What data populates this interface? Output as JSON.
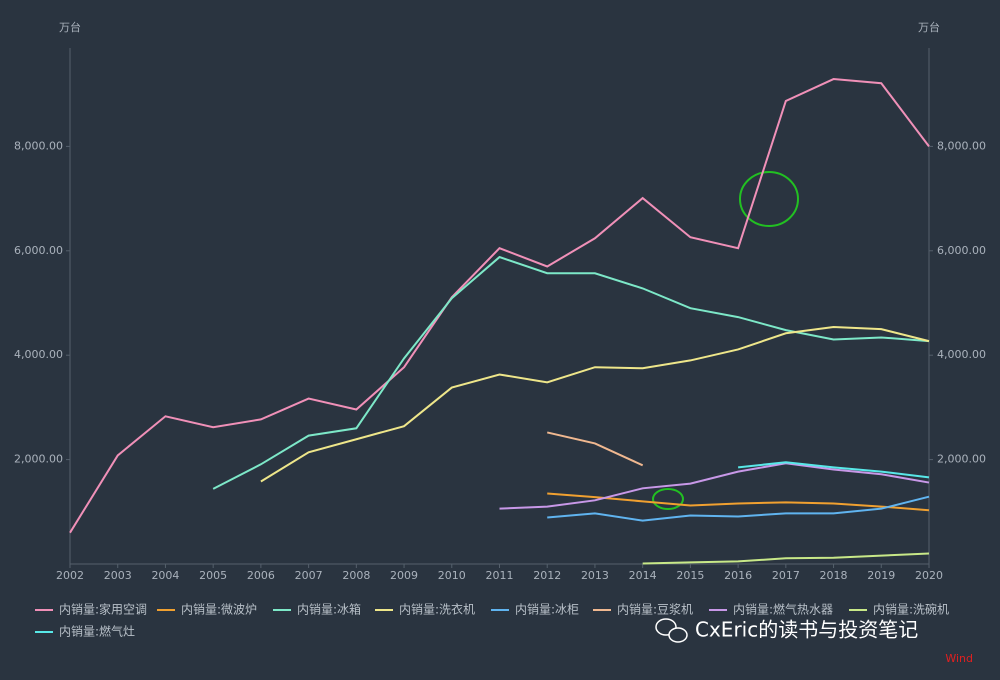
{
  "chart_data": {
    "type": "line",
    "y_unit": "万台",
    "y2_unit": "万台",
    "x": [
      2002,
      2003,
      2004,
      2005,
      2006,
      2007,
      2008,
      2009,
      2010,
      2011,
      2012,
      2013,
      2014,
      2015,
      2016,
      2017,
      2018,
      2019,
      2020
    ],
    "xlim": [
      2002,
      2020
    ],
    "ylim": [
      0,
      10000
    ],
    "yticks": [
      {
        "value": 2000,
        "label": "2,000.00"
      },
      {
        "value": 4000,
        "label": "4,000.00"
      },
      {
        "value": 6000,
        "label": "6,000.00"
      },
      {
        "value": 8000,
        "label": "8,000.00"
      }
    ],
    "y2lim": [
      0,
      10000
    ],
    "y2ticks": [
      {
        "value": 2000,
        "label": "2,000.00"
      },
      {
        "value": 4000,
        "label": "4,000.00"
      },
      {
        "value": 6000,
        "label": "6,000.00"
      },
      {
        "value": 8000,
        "label": "8,000.00"
      }
    ],
    "grid": false,
    "legend": "bottom",
    "series": [
      {
        "name": "内销量:家用空调",
        "color": "#f090b8",
        "values": [
          600,
          2080,
          2830,
          2620,
          2770,
          3170,
          2960,
          3770,
          5110,
          6050,
          5700,
          6240,
          7010,
          6260,
          6050,
          8870,
          9290,
          9210,
          8000
        ]
      },
      {
        "name": "内销量:微波炉",
        "color": "#f0a030",
        "values": [
          null,
          null,
          null,
          null,
          null,
          null,
          null,
          null,
          null,
          null,
          1350,
          1280,
          1200,
          1120,
          1160,
          1180,
          1160,
          1100,
          1030
        ]
      },
      {
        "name": "内销量:冰箱",
        "color": "#7de8c8",
        "values": [
          null,
          null,
          null,
          1440,
          1910,
          2460,
          2600,
          3940,
          5090,
          5880,
          5570,
          5570,
          5280,
          4900,
          4730,
          4480,
          4300,
          4340,
          4270
        ]
      },
      {
        "name": "内销量:洗衣机",
        "color": "#eee68a",
        "values": [
          null,
          null,
          null,
          null,
          1580,
          2140,
          2390,
          2640,
          3380,
          3630,
          3480,
          3770,
          3750,
          3900,
          4110,
          4420,
          4540,
          4500,
          4270
        ]
      },
      {
        "name": "内销量:冰柜",
        "color": "#60b4f0",
        "values": [
          null,
          null,
          null,
          null,
          null,
          null,
          null,
          null,
          null,
          null,
          890,
          970,
          830,
          930,
          910,
          970,
          970,
          1060,
          1290
        ]
      },
      {
        "name": "内销量:豆浆机",
        "color": "#f0b890",
        "values": [
          null,
          null,
          null,
          null,
          null,
          null,
          null,
          null,
          null,
          null,
          2520,
          2310,
          1890,
          null,
          null,
          null,
          null,
          null,
          null
        ]
      },
      {
        "name": "内销量:燃气热水器",
        "color": "#c898e8",
        "values": [
          null,
          null,
          null,
          null,
          null,
          null,
          null,
          null,
          null,
          1060,
          1100,
          1220,
          1450,
          1540,
          1770,
          1930,
          1810,
          1720,
          1560
        ]
      },
      {
        "name": "内销量:洗碗机",
        "color": "#c8e888",
        "values": [
          null,
          null,
          null,
          null,
          null,
          null,
          null,
          null,
          null,
          null,
          null,
          null,
          10,
          30,
          50,
          110,
          120,
          160,
          200
        ]
      },
      {
        "name": "内销量:燃气灶",
        "color": "#58e8e8",
        "values": [
          null,
          null,
          null,
          null,
          null,
          null,
          null,
          null,
          null,
          null,
          null,
          null,
          null,
          null,
          1850,
          1950,
          1850,
          1770,
          1660
        ]
      }
    ],
    "watermark": "CxEric的读书与投资笔记",
    "source": "Wind"
  }
}
